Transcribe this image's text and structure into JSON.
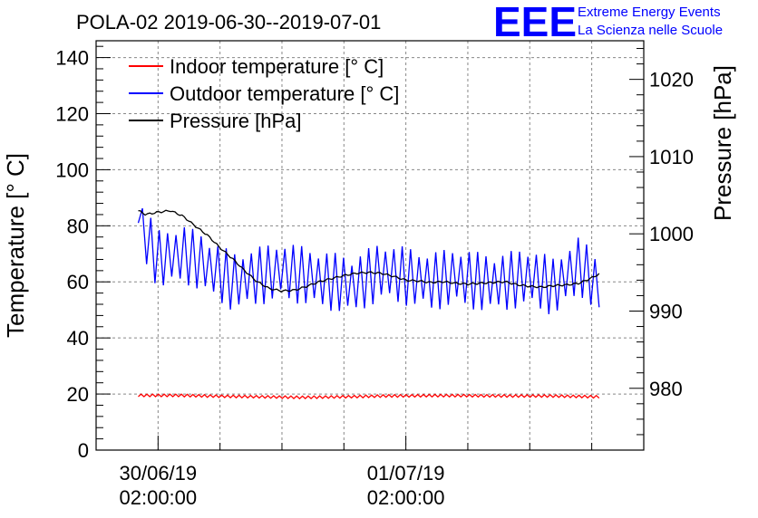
{
  "chart_data": {
    "type": "line",
    "title": "POLA-02 2019-06-30--2019-07-01",
    "ylabel": "Temperature [° C]",
    "y2label": "Pressure [hPa]",
    "ylim": [
      0,
      146
    ],
    "y2lim": [
      972,
      1025
    ],
    "xlim": [
      -0.25,
      1.96
    ],
    "yticks": [
      0,
      20,
      40,
      60,
      80,
      100,
      120,
      140
    ],
    "y2ticks": [
      980,
      990,
      1000,
      1010,
      1020
    ],
    "xticks": [
      {
        "value": 0,
        "line1": "30/06/19",
        "line2": "02:00:00"
      },
      {
        "value": 1,
        "line1": "01/07/19",
        "line2": "02:00:00"
      }
    ],
    "grid": true,
    "legend_position": "top-left",
    "series": [
      {
        "name": "Indoor temperature [° C]",
        "axis": "left",
        "color": "#ff0000",
        "x": [
          -0.08,
          0.08,
          0.25,
          0.42,
          0.58,
          0.75,
          0.92,
          1.08,
          1.25,
          1.42,
          1.58,
          1.78
        ],
        "y": [
          19.5,
          19.5,
          19.2,
          19.0,
          18.8,
          19.0,
          19.3,
          19.4,
          19.4,
          19.3,
          19.3,
          19.0
        ]
      },
      {
        "name": "Outdoor temperature [° C]",
        "axis": "left",
        "color": "#0000ff",
        "x": [
          -0.08,
          0.0,
          0.1,
          0.2,
          0.3,
          0.4,
          0.5,
          0.6,
          0.7,
          0.8,
          0.9,
          1.0,
          1.1,
          1.2,
          1.3,
          1.4,
          1.5,
          1.6,
          1.7,
          1.78
        ],
        "y": [
          81,
          68,
          70,
          66,
          60,
          62,
          64,
          62,
          60,
          59,
          64,
          62,
          60,
          62,
          60,
          60,
          62,
          58,
          66,
          58
        ]
      },
      {
        "name": "Pressure [hPa]",
        "axis": "right",
        "color": "#000000",
        "x": [
          -0.08,
          -0.05,
          0.0,
          0.05,
          0.1,
          0.15,
          0.2,
          0.25,
          0.3,
          0.35,
          0.4,
          0.45,
          0.5,
          0.55,
          0.6,
          0.65,
          0.7,
          0.75,
          0.8,
          0.85,
          0.9,
          0.95,
          1.0,
          1.05,
          1.1,
          1.15,
          1.2,
          1.25,
          1.3,
          1.35,
          1.4,
          1.45,
          1.5,
          1.55,
          1.6,
          1.65,
          1.7,
          1.75,
          1.78
        ],
        "y": [
          1003.0,
          1002.5,
          1002.8,
          1003.0,
          1002.3,
          1001.0,
          999.8,
          998.2,
          996.8,
          995.2,
          993.8,
          992.9,
          992.6,
          992.7,
          993.2,
          993.8,
          994.2,
          994.6,
          994.9,
          995.0,
          994.9,
          994.5,
          994.0,
          993.9,
          993.7,
          993.8,
          993.6,
          993.5,
          993.6,
          993.7,
          993.8,
          993.4,
          993.2,
          993.1,
          993.3,
          993.4,
          993.6,
          994.3,
          994.8
        ]
      }
    ]
  },
  "logo": {
    "mark": "EEE",
    "line1": "Extreme Energy Events",
    "line2": "La Scienza nelle Scuole",
    "color": "#0000ff"
  }
}
